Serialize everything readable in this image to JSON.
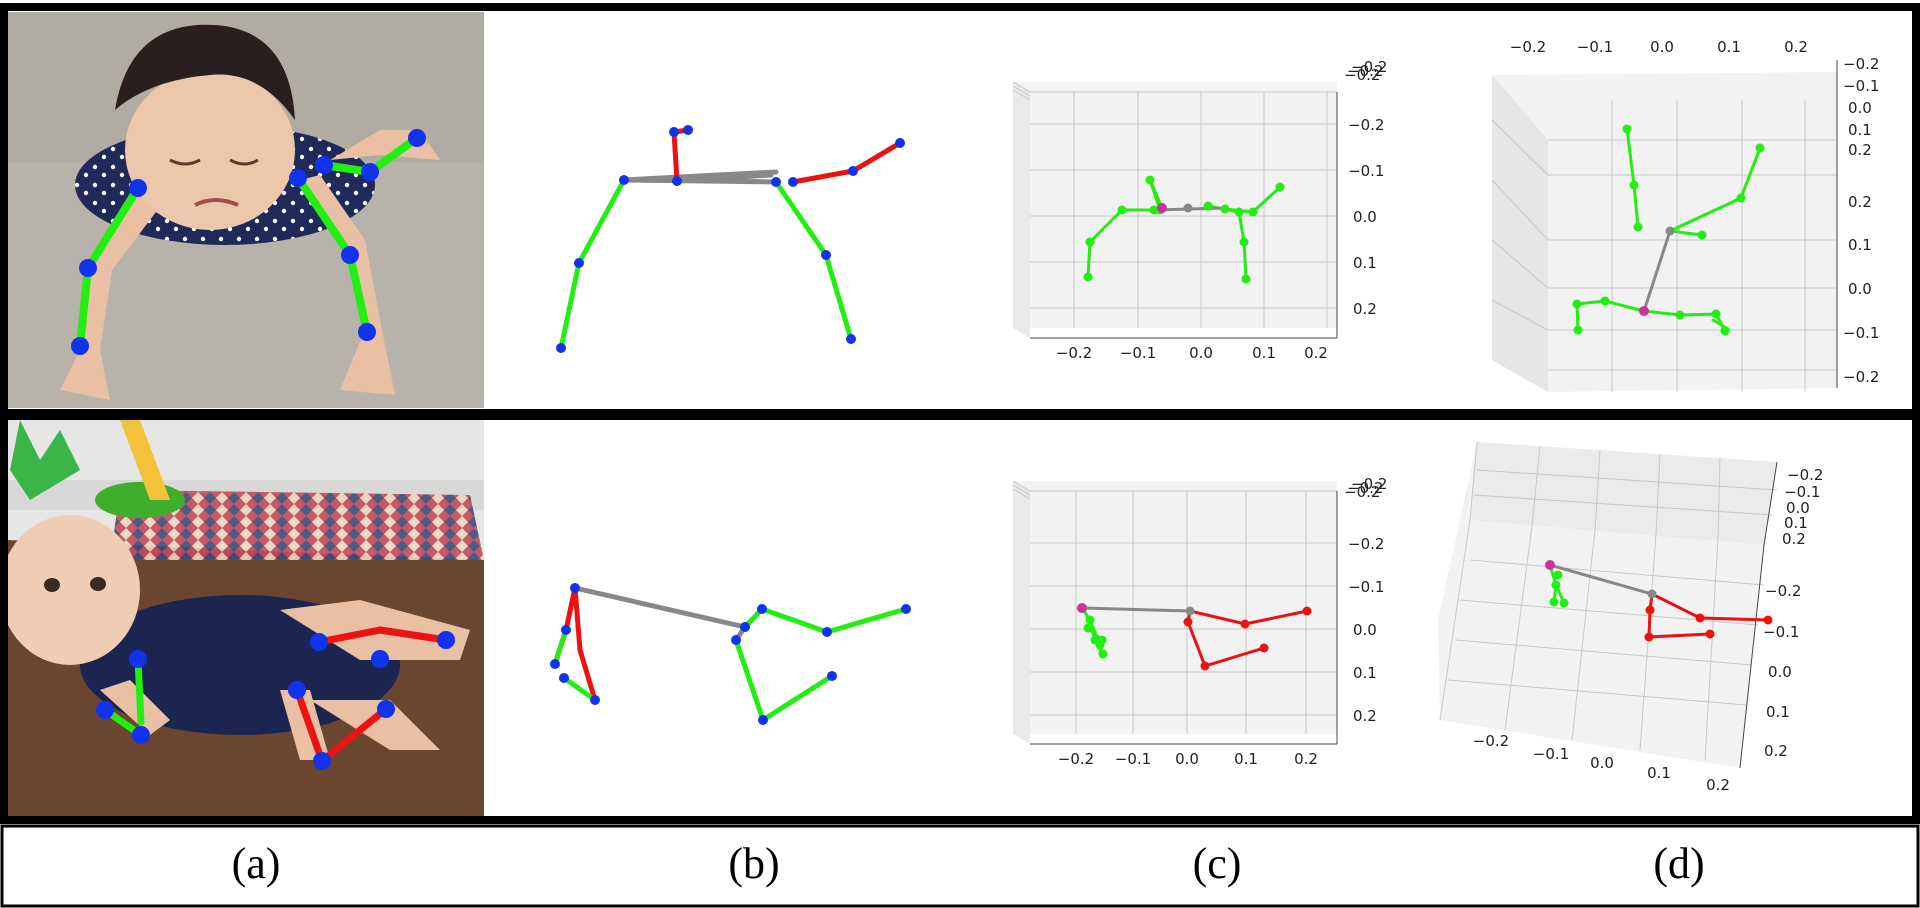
{
  "colors": {
    "left_limb": "#22ee11",
    "right_limb": "#ee1111",
    "torso": "#888888",
    "joint_2d": "#1133ee",
    "root_joint": "#cc3399",
    "pane_bg": "#f2f2f2",
    "grid": "#c8c8c8",
    "border": "#000000",
    "carpet": "#b7b3aa",
    "wood_floor": "#6a4630",
    "wall": "#e6e6e4"
  },
  "icons": {
    "row1_photo": "crawling-baby-photo",
    "row2_photo": "crawling-baby-on-wood-floor-photo"
  },
  "captions": [
    "(a)",
    "(b)",
    "(c)",
    "(d)"
  ],
  "ticks": {
    "row1_c_x": [
      "−0.2",
      "−0.1",
      "0.0",
      "0.1",
      "0.2"
    ],
    "row1_c_y": [
      "−0.2",
      "−0.1",
      "0.0",
      "0.1",
      "0.2"
    ],
    "row1_c_z": [
      "−0.2",
      "−0.2",
      "−0.2"
    ],
    "row1_d_top": [
      "−0.2",
      "−0.1",
      "0.0",
      "0.1",
      "0.2"
    ],
    "row1_d_right_top": [
      "−0.2",
      "−0.1",
      "0.0",
      "0.1",
      "0.2"
    ],
    "row1_d_right": [
      "0.2",
      "0.1",
      "0.0",
      "−0.1",
      "−0.2"
    ],
    "row2_c_x": [
      "−0.2",
      "−0.1",
      "0.0",
      "0.1",
      "0.2"
    ],
    "row2_c_y": [
      "−0.2",
      "−0.1",
      "0.0",
      "0.1",
      "0.2"
    ],
    "row2_c_z": [
      "−0.2",
      "−0.2",
      "−0.2"
    ],
    "row2_d_right_top": [
      "−0.2",
      "−0.1",
      "0.0",
      "0.1",
      "0.2"
    ],
    "row2_d_right": [
      "−0.2",
      "−0.1",
      "0.0",
      "0.1",
      "0.2"
    ],
    "row2_d_bottom": [
      "−0.2",
      "−0.1",
      "0.0",
      "0.1",
      "0.2"
    ]
  }
}
